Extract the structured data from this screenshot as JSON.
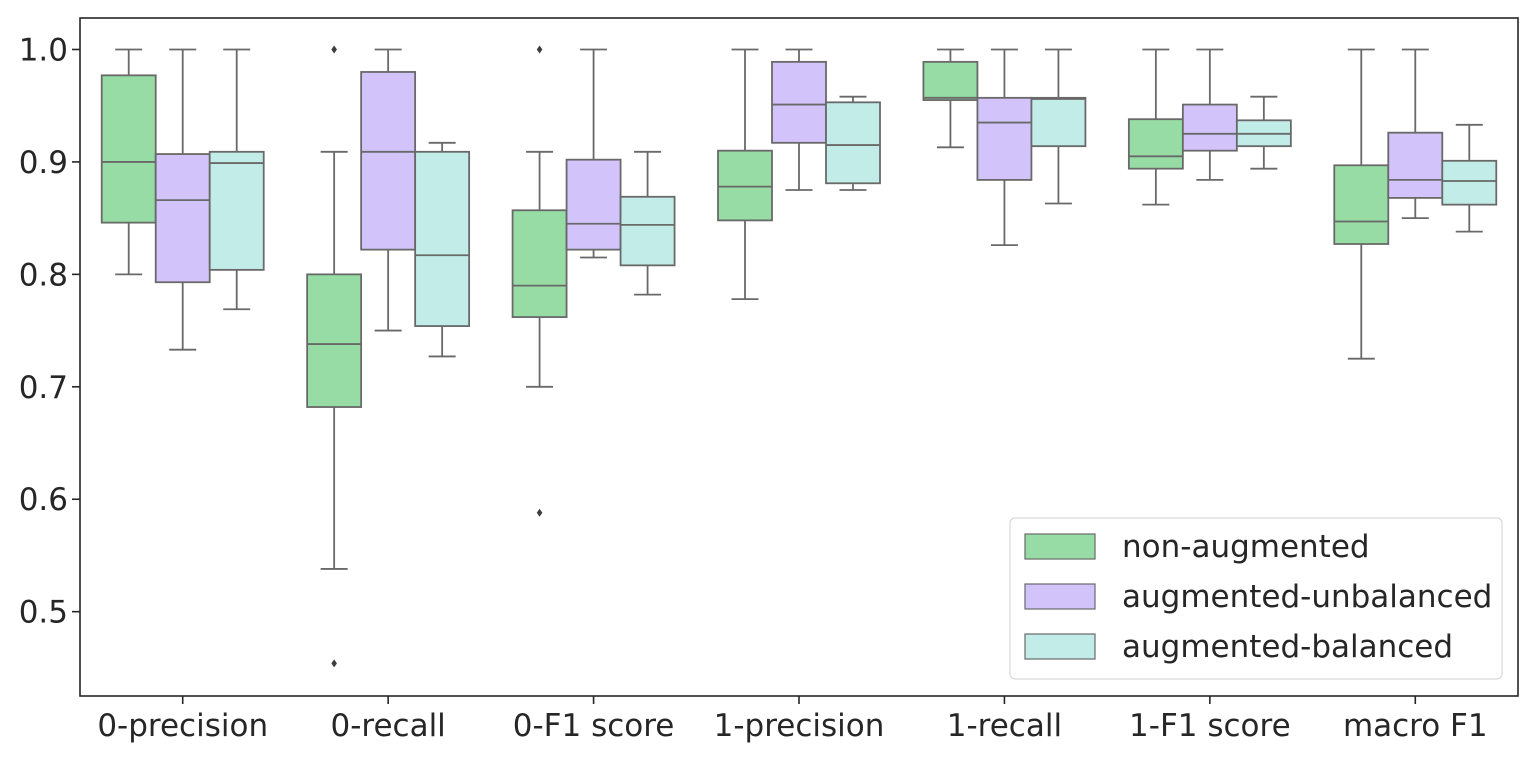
{
  "chart_data": {
    "type": "box",
    "title": "",
    "xlabel": "",
    "ylabel": "",
    "ylim": [
      0.425,
      1.028
    ],
    "y_ticks": [
      "0.5",
      "0.6",
      "0.7",
      "0.8",
      "0.9",
      "1.0"
    ],
    "categories": [
      "0-precision",
      "0-recall",
      "0-F1 score",
      "1-precision",
      "1-recall",
      "1-F1 score",
      "macro F1"
    ],
    "grid": false,
    "legend_position": "bottom-right",
    "series": [
      {
        "name": "non-augmented",
        "color": "#96dca4",
        "boxes": [
          {
            "whislo": 0.8,
            "q1": 0.846,
            "med": 0.9,
            "q3": 0.977,
            "whishi": 1.0,
            "fliers": []
          },
          {
            "whislo": 0.538,
            "q1": 0.682,
            "med": 0.738,
            "q3": 0.8,
            "whishi": 0.909,
            "fliers": [
              1.0,
              0.454
            ]
          },
          {
            "whislo": 0.7,
            "q1": 0.762,
            "med": 0.79,
            "q3": 0.857,
            "whishi": 0.909,
            "fliers": [
              1.0,
              0.588
            ]
          },
          {
            "whislo": 0.778,
            "q1": 0.848,
            "med": 0.878,
            "q3": 0.91,
            "whishi": 1.0,
            "fliers": []
          },
          {
            "whislo": 0.913,
            "q1": 0.955,
            "med": 0.957,
            "q3": 0.989,
            "whishi": 1.0,
            "fliers": []
          },
          {
            "whislo": 0.862,
            "q1": 0.894,
            "med": 0.905,
            "q3": 0.938,
            "whishi": 1.0,
            "fliers": []
          },
          {
            "whislo": 0.725,
            "q1": 0.827,
            "med": 0.847,
            "q3": 0.897,
            "whishi": 1.0,
            "fliers": []
          }
        ]
      },
      {
        "name": "augmented-unbalanced",
        "color": "#d2c4fa",
        "boxes": [
          {
            "whislo": 0.733,
            "q1": 0.793,
            "med": 0.866,
            "q3": 0.907,
            "whishi": 1.0,
            "fliers": []
          },
          {
            "whislo": 0.75,
            "q1": 0.822,
            "med": 0.909,
            "q3": 0.98,
            "whishi": 1.0,
            "fliers": []
          },
          {
            "whislo": 0.815,
            "q1": 0.822,
            "med": 0.845,
            "q3": 0.902,
            "whishi": 1.0,
            "fliers": []
          },
          {
            "whislo": 0.875,
            "q1": 0.917,
            "med": 0.951,
            "q3": 0.989,
            "whishi": 1.0,
            "fliers": []
          },
          {
            "whislo": 0.826,
            "q1": 0.884,
            "med": 0.935,
            "q3": 0.957,
            "whishi": 1.0,
            "fliers": []
          },
          {
            "whislo": 0.884,
            "q1": 0.91,
            "med": 0.925,
            "q3": 0.951,
            "whishi": 1.0,
            "fliers": []
          },
          {
            "whislo": 0.85,
            "q1": 0.868,
            "med": 0.884,
            "q3": 0.926,
            "whishi": 1.0,
            "fliers": []
          }
        ]
      },
      {
        "name": "augmented-balanced",
        "color": "#c1ece8",
        "boxes": [
          {
            "whislo": 0.769,
            "q1": 0.804,
            "med": 0.899,
            "q3": 0.909,
            "whishi": 1.0,
            "fliers": []
          },
          {
            "whislo": 0.727,
            "q1": 0.754,
            "med": 0.817,
            "q3": 0.909,
            "whishi": 0.917,
            "fliers": []
          },
          {
            "whislo": 0.782,
            "q1": 0.808,
            "med": 0.844,
            "q3": 0.869,
            "whishi": 0.909,
            "fliers": []
          },
          {
            "whislo": 0.875,
            "q1": 0.881,
            "med": 0.915,
            "q3": 0.953,
            "whishi": 0.958,
            "fliers": []
          },
          {
            "whislo": 0.863,
            "q1": 0.914,
            "med": 0.956,
            "q3": 0.957,
            "whishi": 1.0,
            "fliers": []
          },
          {
            "whislo": 0.894,
            "q1": 0.914,
            "med": 0.925,
            "q3": 0.937,
            "whishi": 0.958,
            "fliers": []
          },
          {
            "whislo": 0.838,
            "q1": 0.862,
            "med": 0.883,
            "q3": 0.901,
            "whishi": 0.933,
            "fliers": []
          }
        ]
      }
    ]
  }
}
